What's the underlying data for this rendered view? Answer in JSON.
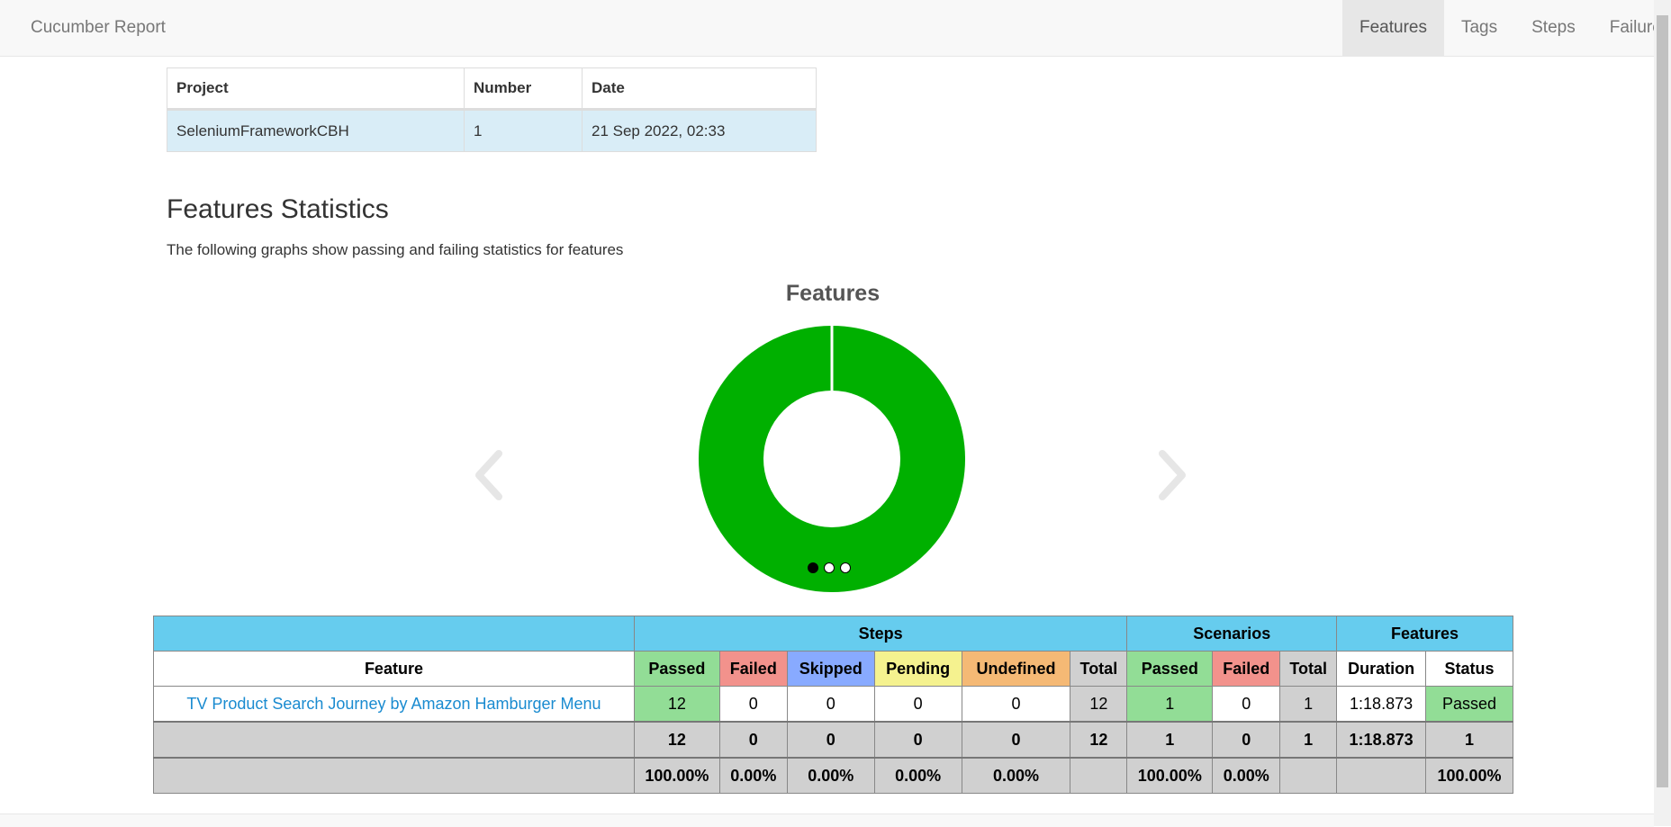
{
  "navbar": {
    "brand": "Cucumber Report",
    "items": [
      {
        "label": "Features",
        "active": true
      },
      {
        "label": "Tags",
        "active": false
      },
      {
        "label": "Steps",
        "active": false
      },
      {
        "label": "Failures",
        "active": false
      }
    ]
  },
  "report_info": {
    "headers": {
      "project": "Project",
      "number": "Number",
      "date": "Date"
    },
    "row": {
      "project": "SeleniumFrameworkCBH",
      "number": "1",
      "date": "21 Sep 2022, 02:33"
    }
  },
  "section": {
    "title": "Features Statistics",
    "description": "The following graphs show passing and failing statistics for features"
  },
  "chart_data": {
    "type": "pie",
    "title": "Features",
    "categories": [
      "Passed"
    ],
    "values": [
      1
    ],
    "colors": [
      "#00b000"
    ],
    "legend": "none",
    "indicators": 3,
    "active_indicator": 0
  },
  "stats": {
    "group_headers": {
      "steps": "Steps",
      "scenarios": "Scenarios",
      "features": "Features"
    },
    "columns": {
      "feature": "Feature",
      "passed": "Passed",
      "failed": "Failed",
      "skipped": "Skipped",
      "pending": "Pending",
      "undefined": "Undefined",
      "total": "Total",
      "duration": "Duration",
      "status": "Status"
    },
    "row": {
      "feature": "TV Product Search Journey by Amazon Hamburger Menu",
      "steps_passed": "12",
      "steps_failed": "0",
      "steps_skipped": "0",
      "steps_pending": "0",
      "steps_undefined": "0",
      "steps_total": "12",
      "scen_passed": "1",
      "scen_failed": "0",
      "scen_total": "1",
      "duration": "1:18.873",
      "status": "Passed"
    },
    "totals": {
      "steps_passed": "12",
      "steps_failed": "0",
      "steps_skipped": "0",
      "steps_pending": "0",
      "steps_undefined": "0",
      "steps_total": "12",
      "scen_passed": "1",
      "scen_failed": "0",
      "scen_total": "1",
      "duration": "1:18.873",
      "status": "1"
    },
    "percentages": {
      "steps_passed": "100.00%",
      "steps_failed": "0.00%",
      "steps_skipped": "0.00%",
      "steps_pending": "0.00%",
      "steps_undefined": "0.00%",
      "scen_passed": "100.00%",
      "scen_failed": "0.00%",
      "status": "100.00%"
    }
  }
}
